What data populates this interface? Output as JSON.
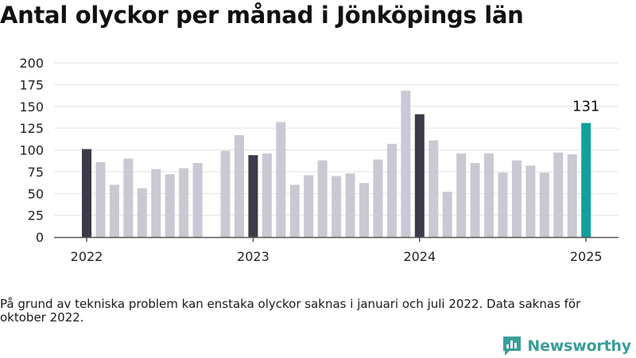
{
  "title": "Antal olyckor per månad i Jönköpings län",
  "footnote": "På grund av tekniska problem kan enstaka olyckor saknas i januari och juli 2022. Data saknas för oktober 2022.",
  "brand": {
    "name": "Newsworthy",
    "icon": "newsworthy-logo-icon",
    "color": "#3a9e9a"
  },
  "colors": {
    "regular": "#c9c8d3",
    "january": "#3c3b4a",
    "latest": "#12a19a",
    "gridline": "#e3e3e3",
    "axis": "#555555"
  },
  "chart_data": {
    "type": "bar",
    "ylim": [
      0,
      200
    ],
    "yticks": [
      0,
      25,
      50,
      75,
      100,
      125,
      150,
      175,
      200
    ],
    "xticks": [
      "2022",
      "2023",
      "2024",
      "2025"
    ],
    "xlabel": "",
    "ylabel": "",
    "grid": true,
    "annotation": {
      "month": "2025-01",
      "text": "131"
    },
    "series": [
      {
        "months": [
          "2022-01",
          "2022-02",
          "2022-03",
          "2022-04",
          "2022-05",
          "2022-06",
          "2022-07",
          "2022-08",
          "2022-09",
          "2022-10",
          "2022-11",
          "2022-12",
          "2023-01",
          "2023-02",
          "2023-03",
          "2023-04",
          "2023-05",
          "2023-06",
          "2023-07",
          "2023-08",
          "2023-09",
          "2023-10",
          "2023-11",
          "2023-12",
          "2024-01",
          "2024-02",
          "2024-03",
          "2024-04",
          "2024-05",
          "2024-06",
          "2024-07",
          "2024-08",
          "2024-09",
          "2024-10",
          "2024-11",
          "2024-12",
          "2025-01"
        ],
        "values": [
          101,
          86,
          60,
          90,
          56,
          78,
          72,
          79,
          85,
          null,
          99,
          117,
          94,
          96,
          132,
          60,
          71,
          88,
          70,
          73,
          62,
          89,
          107,
          168,
          141,
          111,
          52,
          96,
          85,
          96,
          74,
          88,
          82,
          74,
          97,
          95,
          131
        ]
      }
    ]
  }
}
